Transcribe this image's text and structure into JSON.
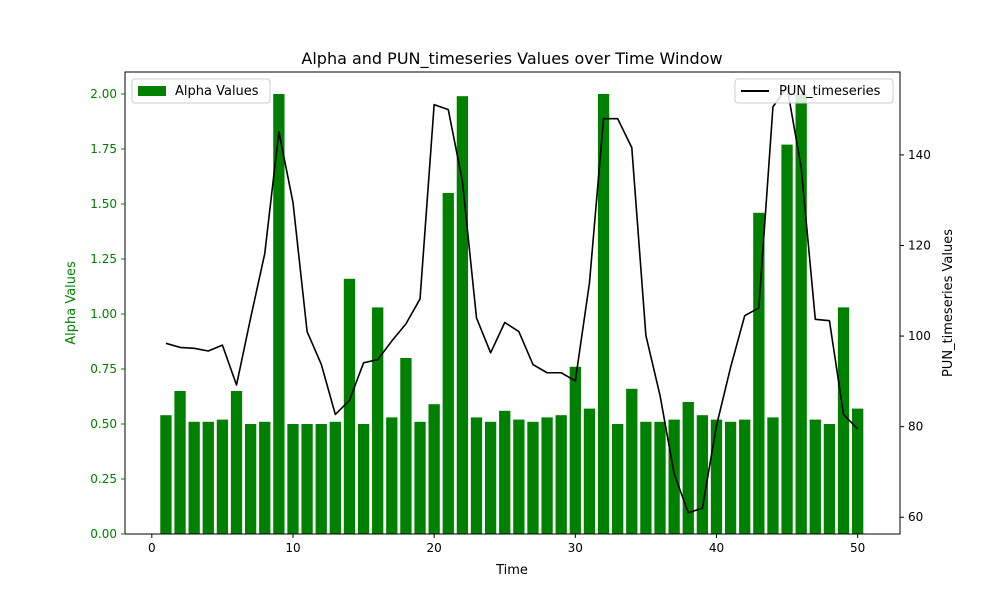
{
  "chart_data": {
    "type": "bar+line",
    "title": "Alpha and PUN_timeseries Values over Time Window",
    "xlabel": "Time",
    "ylabel_left": "Alpha Values",
    "ylabel_right": "PUN_timeseries Values",
    "xlim": [
      -1.9,
      53
    ],
    "ylim_left": [
      0,
      2.1
    ],
    "ylim_right": [
      56.3,
      158.3
    ],
    "x_ticks": [
      0,
      10,
      20,
      30,
      40,
      50
    ],
    "y_left_ticks": [
      0.0,
      0.25,
      0.5,
      0.75,
      1.0,
      1.25,
      1.5,
      1.75,
      2.0
    ],
    "y_right_ticks": [
      60,
      80,
      100,
      120,
      140
    ],
    "colors": {
      "bar": "#008000",
      "line": "#000000",
      "left_axis": "#008000",
      "right_axis": "#000000"
    },
    "legend_left": "Alpha Values",
    "legend_right": "PUN_timeseries",
    "series": [
      {
        "name": "Alpha Values",
        "kind": "bar",
        "x": [
          1,
          2,
          3,
          4,
          5,
          6,
          7,
          8,
          9,
          10,
          11,
          12,
          13,
          14,
          15,
          16,
          17,
          18,
          19,
          20,
          21,
          22,
          23,
          24,
          25,
          26,
          27,
          28,
          29,
          30,
          31,
          32,
          33,
          34,
          35,
          36,
          37,
          38,
          39,
          40,
          41,
          42,
          43,
          44,
          45,
          46,
          47,
          48,
          49,
          50
        ],
        "values": [
          0.54,
          0.65,
          0.51,
          0.51,
          0.52,
          0.65,
          0.5,
          0.51,
          2.0,
          0.5,
          0.5,
          0.5,
          0.51,
          1.16,
          0.5,
          1.03,
          0.53,
          0.8,
          0.51,
          0.59,
          1.55,
          1.99,
          0.53,
          0.51,
          0.56,
          0.52,
          0.51,
          0.53,
          0.54,
          0.76,
          0.57,
          2.0,
          0.5,
          0.66,
          0.51,
          0.51,
          0.52,
          0.6,
          0.54,
          0.52,
          0.51,
          0.52,
          1.46,
          0.53,
          1.77,
          2.0,
          0.52,
          0.5,
          1.03,
          0.57
        ]
      },
      {
        "name": "PUN_timeseries",
        "kind": "line",
        "x": [
          1,
          2,
          3,
          4,
          5,
          6,
          7,
          8,
          9,
          10,
          11,
          12,
          13,
          14,
          15,
          16,
          17,
          18,
          19,
          20,
          21,
          22,
          23,
          24,
          25,
          26,
          27,
          28,
          29,
          30,
          31,
          32,
          33,
          34,
          35,
          36,
          37,
          38,
          39,
          40,
          41,
          42,
          43,
          44,
          45,
          46,
          47,
          48,
          49,
          50
        ],
        "values": [
          98.4,
          97.5,
          97.3,
          96.7,
          98.0,
          89.2,
          104.0,
          118.2,
          145.1,
          129.5,
          101.0,
          93.8,
          82.7,
          85.8,
          94.1,
          94.8,
          98.9,
          102.7,
          108.2,
          151.1,
          150.0,
          134.2,
          104.0,
          96.3,
          103.0,
          101.0,
          93.7,
          91.9,
          91.9,
          90.1,
          111.7,
          148.0,
          148.0,
          141.6,
          100.1,
          86.9,
          69.6,
          61.0,
          62.0,
          80.2,
          93.1,
          104.5,
          106.2,
          150.6,
          155.0,
          137.2,
          103.7,
          103.4,
          82.7,
          79.5
        ]
      }
    ]
  }
}
